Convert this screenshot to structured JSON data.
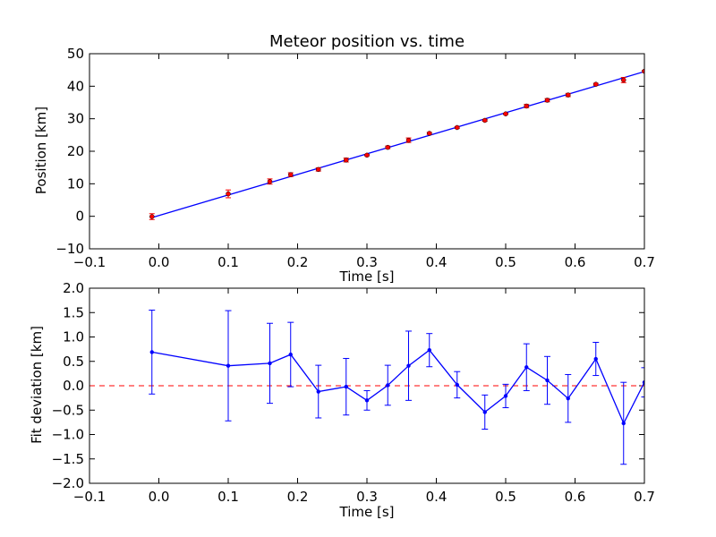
{
  "chart_data": [
    {
      "type": "line",
      "title": "Meteor position vs. time",
      "xlabel": "Time [s]",
      "ylabel": "Position [km]",
      "xlim": [
        -0.1,
        0.7
      ],
      "ylim": [
        -10,
        50
      ],
      "xticks": [
        -0.1,
        0.0,
        0.1,
        0.2,
        0.3,
        0.4,
        0.5,
        0.6,
        0.7
      ],
      "xtick_labels": [
        "−0.1",
        "0.0",
        "0.1",
        "0.2",
        "0.3",
        "0.4",
        "0.5",
        "0.6",
        "0.7"
      ],
      "yticks": [
        -10,
        0,
        10,
        20,
        30,
        40,
        50
      ],
      "ytick_labels": [
        "−10",
        "0",
        "10",
        "20",
        "30",
        "40",
        "50"
      ],
      "grid": false,
      "colors": {
        "points": "#ff0000",
        "fit": "#0000ff"
      },
      "fit_line": {
        "x": [
          -0.01,
          0.7
        ],
        "y": [
          -0.4,
          44.5
        ]
      },
      "series": [
        {
          "x": [
            -0.01,
            0.1,
            0.16,
            0.19,
            0.23,
            0.27,
            0.3,
            0.33,
            0.36,
            0.39,
            0.43,
            0.47,
            0.5,
            0.53,
            0.56,
            0.59,
            0.63,
            0.67,
            0.7
          ],
          "y": [
            -0.1,
            6.9,
            10.7,
            12.8,
            14.4,
            17.3,
            18.8,
            21.2,
            23.4,
            25.5,
            27.3,
            29.5,
            31.5,
            33.9,
            35.7,
            37.3,
            40.6,
            41.9,
            44.6
          ],
          "yerr": [
            0.9,
            1.2,
            0.8,
            0.6,
            0.5,
            0.6,
            0.2,
            0.4,
            0.7,
            0.3,
            0.3,
            0.3,
            0.2,
            0.5,
            0.5,
            0.5,
            0.3,
            0.8,
            0.3
          ]
        }
      ]
    },
    {
      "type": "line",
      "title": "",
      "xlabel": "Time [s]",
      "ylabel": "Fit deviation [km]",
      "xlim": [
        -0.1,
        0.7
      ],
      "ylim": [
        -2.0,
        2.0
      ],
      "xticks": [
        -0.1,
        0.0,
        0.1,
        0.2,
        0.3,
        0.4,
        0.5,
        0.6,
        0.7
      ],
      "xtick_labels": [
        "−0.1",
        "0.0",
        "0.1",
        "0.2",
        "0.3",
        "0.4",
        "0.5",
        "0.6",
        "0.7"
      ],
      "yticks": [
        -2.0,
        -1.5,
        -1.0,
        -0.5,
        0.0,
        0.5,
        1.0,
        1.5,
        2.0
      ],
      "ytick_labels": [
        "−2.0",
        "−1.5",
        "−1.0",
        "−0.5",
        "0.0",
        "0.5",
        "1.0",
        "1.5",
        "2.0"
      ],
      "grid": false,
      "colors": {
        "series": "#0000ff",
        "zero_line": "#ff0000"
      },
      "reference_line": {
        "y": 0.0,
        "style": "dashed"
      },
      "series": [
        {
          "x": [
            -0.01,
            0.1,
            0.16,
            0.19,
            0.23,
            0.27,
            0.3,
            0.33,
            0.36,
            0.39,
            0.43,
            0.47,
            0.5,
            0.53,
            0.56,
            0.59,
            0.63,
            0.67,
            0.7
          ],
          "y": [
            0.69,
            0.41,
            0.46,
            0.64,
            -0.12,
            -0.02,
            -0.3,
            0.01,
            0.41,
            0.73,
            0.02,
            -0.54,
            -0.21,
            0.38,
            0.11,
            -0.26,
            0.55,
            -0.77,
            0.07
          ],
          "yerr": [
            0.86,
            1.13,
            0.82,
            0.66,
            0.54,
            0.58,
            0.2,
            0.41,
            0.71,
            0.34,
            0.27,
            0.35,
            0.24,
            0.48,
            0.49,
            0.49,
            0.34,
            0.84,
            0.3
          ]
        }
      ]
    }
  ]
}
